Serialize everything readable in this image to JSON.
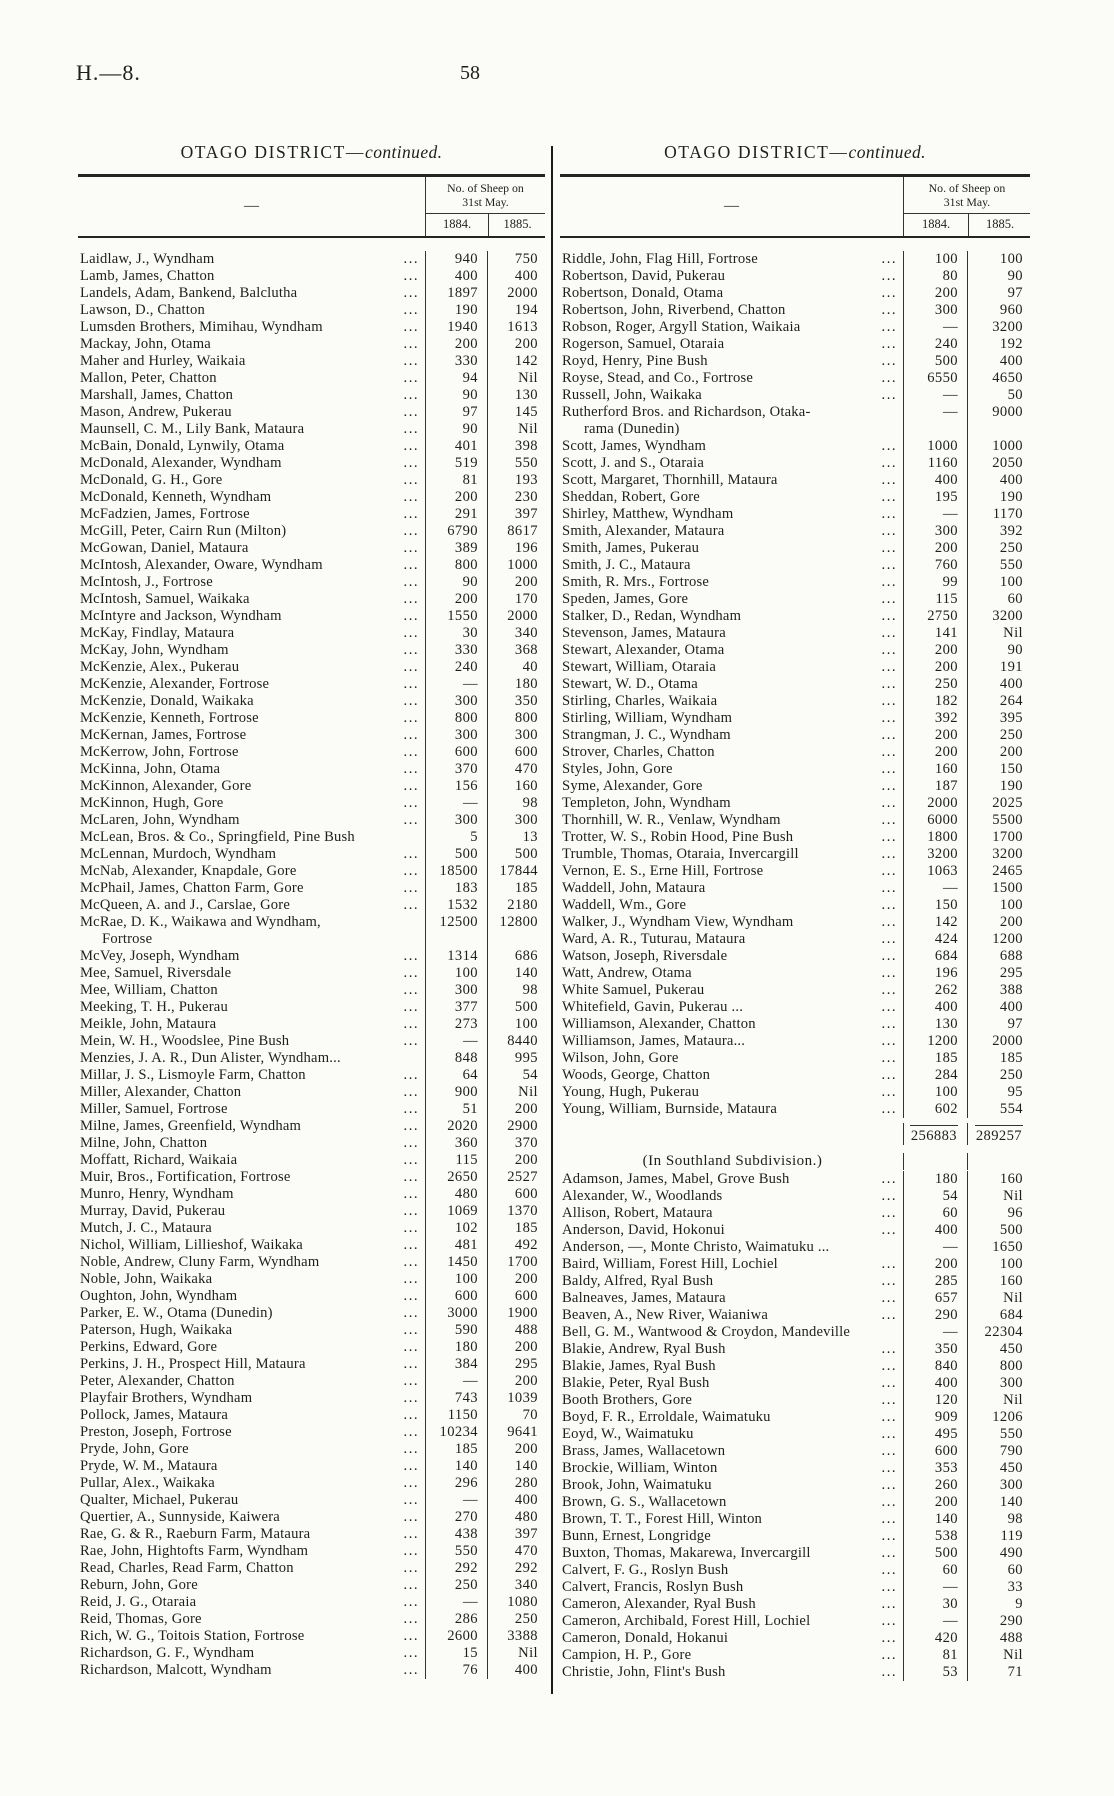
{
  "page": {
    "doc_ref": "H.—8.",
    "page_number": "58"
  },
  "header_labels": {
    "name_dash": "—",
    "sheep_on": "No. of Sheep on",
    "date": "31st May.",
    "y1884": "1884.",
    "y1885": "1885."
  },
  "left_table": {
    "title_caps": "OTAGO DISTRICT—",
    "title_cont": "continued.",
    "rows": [
      [
        "Laidlaw, J., Wyndham",
        1,
        "940",
        "750"
      ],
      [
        "Lamb, James, Chatton",
        1,
        "400",
        "400"
      ],
      [
        "Landels, Adam, Bankend, Balclutha",
        1,
        "1897",
        "2000"
      ],
      [
        "Lawson, D., Chatton",
        1,
        "190",
        "194"
      ],
      [
        "Lumsden Brothers, Mimihau, Wyndham",
        1,
        "1940",
        "1613"
      ],
      [
        "Mackay, John, Otama",
        1,
        "200",
        "200"
      ],
      [
        "Maher and Hurley, Waikaia",
        1,
        "330",
        "142"
      ],
      [
        "Mallon, Peter, Chatton",
        1,
        "94",
        "Nil"
      ],
      [
        "Marshall, James, Chatton",
        1,
        "90",
        "130"
      ],
      [
        "Mason, Andrew, Pukerau",
        1,
        "97",
        "145"
      ],
      [
        "Maunsell, C. M., Lily Bank, Mataura",
        1,
        "90",
        "Nil"
      ],
      [
        "McBain, Donald, Lynwily, Otama",
        1,
        "401",
        "398"
      ],
      [
        "McDonald, Alexander, Wyndham",
        1,
        "519",
        "550"
      ],
      [
        "McDonald, G. H., Gore",
        1,
        "81",
        "193"
      ],
      [
        "McDonald, Kenneth, Wyndham",
        1,
        "200",
        "230"
      ],
      [
        "McFadzien, James, Fortrose",
        1,
        "291",
        "397"
      ],
      [
        "McGill, Peter, Cairn Run (Milton)",
        1,
        "6790",
        "8617"
      ],
      [
        "McGowan, Daniel, Mataura",
        1,
        "389",
        "196"
      ],
      [
        "McIntosh, Alexander, Oware, Wyndham",
        1,
        "800",
        "1000"
      ],
      [
        "McIntosh, J., Fortrose",
        1,
        "90",
        "200"
      ],
      [
        "McIntosh, Samuel, Waikaka",
        1,
        "200",
        "170"
      ],
      [
        "McIntyre and Jackson, Wyndham",
        1,
        "1550",
        "2000"
      ],
      [
        "McKay, Findlay, Mataura",
        1,
        "30",
        "340"
      ],
      [
        "McKay, John, Wyndham",
        1,
        "330",
        "368"
      ],
      [
        "McKenzie, Alex., Pukerau",
        1,
        "240",
        "40"
      ],
      [
        "McKenzie, Alexander, Fortrose",
        1,
        "—",
        "180"
      ],
      [
        "McKenzie, Donald, Waikaka",
        1,
        "300",
        "350"
      ],
      [
        "McKenzie, Kenneth, Fortrose",
        1,
        "800",
        "800"
      ],
      [
        "McKernan, James, Fortrose",
        1,
        "300",
        "300"
      ],
      [
        "McKerrow, John, Fortrose",
        1,
        "600",
        "600"
      ],
      [
        "McKinna, John, Otama",
        1,
        "370",
        "470"
      ],
      [
        "McKinnon, Alexander, Gore",
        1,
        "156",
        "160"
      ],
      [
        "McKinnon, Hugh, Gore",
        1,
        "—",
        "98"
      ],
      [
        "McLaren, John, Wyndham",
        1,
        "300",
        "300"
      ],
      [
        "McLean, Bros. & Co., Springfield, Pine Bush",
        0,
        "5",
        "13"
      ],
      [
        "McLennan, Murdoch, Wyndham",
        1,
        "500",
        "500"
      ],
      [
        "McNab, Alexander, Knapdale, Gore",
        1,
        "18500",
        "17844"
      ],
      [
        "McPhail, James, Chatton Farm, Gore",
        1,
        "183",
        "185"
      ],
      [
        "McQueen, A. and J., Carslae, Gore",
        1,
        "1532",
        "2180"
      ],
      [
        "McRae, D. K., Waikawa and Wyndham,",
        0,
        "12500",
        "12800",
        "Fortrose"
      ],
      [
        "McVey, Joseph, Wyndham",
        1,
        "1314",
        "686"
      ],
      [
        "Mee, Samuel, Riversdale",
        1,
        "100",
        "140"
      ],
      [
        "Mee, William, Chatton",
        1,
        "300",
        "98"
      ],
      [
        "Meeking, T. H., Pukerau",
        1,
        "377",
        "500"
      ],
      [
        "Meikle, John, Mataura",
        1,
        "273",
        "100"
      ],
      [
        "Mein, W. H., Woodslee, Pine Bush",
        1,
        "—",
        "8440"
      ],
      [
        "Menzies, J. A. R., Dun Alister, Wyndham...",
        0,
        "848",
        "995"
      ],
      [
        "Millar, J. S., Lismoyle Farm, Chatton",
        1,
        "64",
        "54"
      ],
      [
        "Miller, Alexander, Chatton",
        1,
        "900",
        "Nil"
      ],
      [
        "Miller, Samuel, Fortrose",
        1,
        "51",
        "200"
      ],
      [
        "Milne, James, Greenfield, Wyndham",
        1,
        "2020",
        "2900"
      ],
      [
        "Milne, John, Chatton",
        1,
        "360",
        "370"
      ],
      [
        "Moffatt, Richard, Waikaia",
        1,
        "115",
        "200"
      ],
      [
        "Muir, Bros., Fortification, Fortrose",
        1,
        "2650",
        "2527"
      ],
      [
        "Munro, Henry, Wyndham",
        1,
        "480",
        "600"
      ],
      [
        "Murray, David, Pukerau",
        1,
        "1069",
        "1370"
      ],
      [
        "Mutch, J. C., Mataura",
        1,
        "102",
        "185"
      ],
      [
        "Nichol, William, Lillieshof, Waikaka",
        1,
        "481",
        "492"
      ],
      [
        "Noble, Andrew, Cluny Farm, Wyndham",
        1,
        "1450",
        "1700"
      ],
      [
        "Noble, John, Waikaka",
        1,
        "100",
        "200"
      ],
      [
        "Oughton, John, Wyndham",
        1,
        "600",
        "600"
      ],
      [
        "Parker, E. W., Otama (Dunedin)",
        1,
        "3000",
        "1900"
      ],
      [
        "Paterson, Hugh, Waikaka",
        1,
        "590",
        "488"
      ],
      [
        "Perkins, Edward, Gore",
        1,
        "180",
        "200"
      ],
      [
        "Perkins, J. H., Prospect Hill, Mataura",
        1,
        "384",
        "295"
      ],
      [
        "Peter, Alexander, Chatton",
        1,
        "—",
        "200"
      ],
      [
        "Playfair Brothers, Wyndham",
        1,
        "743",
        "1039"
      ],
      [
        "Pollock, James, Mataura",
        1,
        "1150",
        "70"
      ],
      [
        "Preston, Joseph, Fortrose",
        1,
        "10234",
        "9641"
      ],
      [
        "Pryde, John, Gore",
        1,
        "185",
        "200"
      ],
      [
        "Pryde, W. M., Mataura",
        1,
        "140",
        "140"
      ],
      [
        "Pullar, Alex., Waikaka",
        1,
        "296",
        "280"
      ],
      [
        "Qualter, Michael, Pukerau",
        1,
        "—",
        "400"
      ],
      [
        "Quertier, A., Sunnyside, Kaiwera",
        1,
        "270",
        "480"
      ],
      [
        "Rae, G. & R., Raeburn Farm, Mataura",
        1,
        "438",
        "397"
      ],
      [
        "Rae, John, Hightofts Farm, Wyndham",
        1,
        "550",
        "470"
      ],
      [
        "Read, Charles, Read Farm, Chatton",
        1,
        "292",
        "292"
      ],
      [
        "Reburn, John, Gore",
        1,
        "250",
        "340"
      ],
      [
        "Reid, J. G., Otaraia",
        1,
        "—",
        "1080"
      ],
      [
        "Reid, Thomas, Gore",
        1,
        "286",
        "250"
      ],
      [
        "Rich, W. G., Toitois Station, Fortrose",
        1,
        "2600",
        "3388"
      ],
      [
        "Richardson, G. F., Wyndham",
        1,
        "15",
        "Nil"
      ],
      [
        "Richardson, Malcott, Wyndham",
        1,
        "76",
        "400"
      ]
    ]
  },
  "right_table": {
    "title_caps": "OTAGO DISTRICT—",
    "title_cont": "continued.",
    "rows": [
      [
        "Riddle, John, Flag Hill, Fortrose",
        1,
        "100",
        "100"
      ],
      [
        "Robertson, David, Pukerau",
        1,
        "80",
        "90"
      ],
      [
        "Robertson, Donald, Otama",
        1,
        "200",
        "97"
      ],
      [
        "Robertson, John, Riverbend, Chatton",
        1,
        "300",
        "960"
      ],
      [
        "Robson, Roger, Argyll Station, Waikaia",
        1,
        "—",
        "3200"
      ],
      [
        "Rogerson, Samuel, Otaraia",
        1,
        "240",
        "192"
      ],
      [
        "Royd, Henry, Pine Bush",
        1,
        "500",
        "400"
      ],
      [
        "Royse, Stead, and Co., Fortrose",
        1,
        "6550",
        "4650"
      ],
      [
        "Russell, John, Waikaka",
        1,
        "—",
        "50"
      ],
      [
        "Rutherford Bros. and Richardson, Otaka-",
        0,
        "—",
        "9000",
        "rama (Dunedin)"
      ],
      [
        "Scott, James, Wyndham",
        1,
        "1000",
        "1000"
      ],
      [
        "Scott, J. and S., Otaraia",
        1,
        "1160",
        "2050"
      ],
      [
        "Scott, Margaret, Thornhill, Mataura",
        1,
        "400",
        "400"
      ],
      [
        "Sheddan, Robert, Gore",
        1,
        "195",
        "190"
      ],
      [
        "Shirley, Matthew, Wyndham",
        1,
        "—",
        "1170"
      ],
      [
        "Smith, Alexander, Mataura",
        1,
        "300",
        "392"
      ],
      [
        "Smith, James, Pukerau",
        1,
        "200",
        "250"
      ],
      [
        "Smith, J. C., Mataura",
        1,
        "760",
        "550"
      ],
      [
        "Smith, R. Mrs., Fortrose",
        1,
        "99",
        "100"
      ],
      [
        "Speden, James, Gore",
        1,
        "115",
        "60"
      ],
      [
        "Stalker, D., Redan, Wyndham",
        1,
        "2750",
        "3200"
      ],
      [
        "Stevenson, James, Mataura",
        1,
        "141",
        "Nil"
      ],
      [
        "Stewart, Alexander, Otama",
        1,
        "200",
        "90"
      ],
      [
        "Stewart, William, Otaraia",
        1,
        "200",
        "191"
      ],
      [
        "Stewart, W. D., Otama",
        1,
        "250",
        "400"
      ],
      [
        "Stirling, Charles, Waikaia",
        1,
        "182",
        "264"
      ],
      [
        "Stirling, William, Wyndham",
        1,
        "392",
        "395"
      ],
      [
        "Strangman, J. C., Wyndham",
        1,
        "200",
        "250"
      ],
      [
        "Strover, Charles, Chatton",
        1,
        "200",
        "200"
      ],
      [
        "Styles, John, Gore",
        1,
        "160",
        "150"
      ],
      [
        "Syme, Alexander, Gore",
        1,
        "187",
        "190"
      ],
      [
        "Templeton, John, Wyndham",
        1,
        "2000",
        "2025"
      ],
      [
        "Thornhill, W. R., Venlaw, Wyndham",
        1,
        "6000",
        "5500"
      ],
      [
        "Trotter, W. S., Robin Hood, Pine Bush",
        1,
        "1800",
        "1700"
      ],
      [
        "Trumble, Thomas, Otaraia, Invercargill",
        1,
        "3200",
        "3200"
      ],
      [
        "Vernon, E. S., Erne Hill, Fortrose",
        1,
        "1063",
        "2465"
      ],
      [
        "Waddell, John, Mataura",
        1,
        "—",
        "1500"
      ],
      [
        "Waddell, Wm., Gore",
        1,
        "150",
        "100"
      ],
      [
        "Walker, J., Wyndham View, Wyndham",
        1,
        "142",
        "200"
      ],
      [
        "Ward, A. R., Tuturau, Mataura",
        1,
        "424",
        "1200"
      ],
      [
        "Watson, Joseph, Riversdale",
        1,
        "684",
        "688"
      ],
      [
        "Watt, Andrew, Otama",
        1,
        "196",
        "295"
      ],
      [
        "White Samuel, Pukerau",
        1,
        "262",
        "388"
      ],
      [
        "Whitefield, Gavin, Pukerau ...",
        1,
        "400",
        "400"
      ],
      [
        "Williamson, Alexander, Chatton",
        1,
        "130",
        "97"
      ],
      [
        "Williamson, James, Mataura...",
        1,
        "1200",
        "2000"
      ],
      [
        "Wilson, John, Gore",
        1,
        "185",
        "185"
      ],
      [
        "Woods, George, Chatton",
        1,
        "284",
        "250"
      ],
      [
        "Young, Hugh, Pukerau",
        1,
        "100",
        "95"
      ],
      [
        "Young, William, Burnside, Mataura",
        1,
        "602",
        "554"
      ],
      {
        "total": [
          "256883",
          "289257"
        ]
      },
      {
        "sub": "(In Southland Subdivision.)"
      },
      [
        "Adamson, James, Mabel, Grove Bush",
        1,
        "180",
        "160"
      ],
      [
        "Alexander, W., Woodlands",
        1,
        "54",
        "Nil"
      ],
      [
        "Allison, Robert, Mataura",
        1,
        "60",
        "96"
      ],
      [
        "Anderson, David, Hokonui",
        1,
        "400",
        "500"
      ],
      [
        "Anderson, —, Monte Christo, Waimatuku ...",
        0,
        "—",
        "1650"
      ],
      [
        "Baird, William, Forest Hill, Lochiel",
        1,
        "200",
        "100"
      ],
      [
        "Baldy, Alfred, Ryal Bush",
        1,
        "285",
        "160"
      ],
      [
        "Balneaves, James, Mataura",
        1,
        "657",
        "Nil"
      ],
      [
        "Beaven, A., New River, Waianiwa",
        1,
        "290",
        "684"
      ],
      [
        "Bell, G. M., Wantwood & Croydon, Mandeville",
        0,
        "—",
        "22304"
      ],
      [
        "Blakie, Andrew, Ryal Bush",
        1,
        "350",
        "450"
      ],
      [
        "Blakie, James, Ryal Bush",
        1,
        "840",
        "800"
      ],
      [
        "Blakie, Peter, Ryal Bush",
        1,
        "400",
        "300"
      ],
      [
        "Booth Brothers, Gore",
        1,
        "120",
        "Nil"
      ],
      [
        "Boyd, F. R., Erroldale, Waimatuku",
        1,
        "909",
        "1206"
      ],
      [
        "Eoyd, W., Waimatuku",
        1,
        "495",
        "550"
      ],
      [
        "Brass, James, Wallacetown",
        1,
        "600",
        "790"
      ],
      [
        "Brockie, William, Winton",
        1,
        "353",
        "450"
      ],
      [
        "Brook, John, Waimatuku",
        1,
        "260",
        "300"
      ],
      [
        "Brown, G. S., Wallacetown",
        1,
        "200",
        "140"
      ],
      [
        "Brown, T. T., Forest Hill, Winton",
        1,
        "140",
        "98"
      ],
      [
        "Bunn, Ernest, Longridge",
        1,
        "538",
        "119"
      ],
      [
        "Buxton, Thomas, Makarewa, Invercargill",
        1,
        "500",
        "490"
      ],
      [
        "Calvert, F. G., Roslyn Bush",
        1,
        "60",
        "60"
      ],
      [
        "Calvert, Francis, Roslyn Bush",
        1,
        "—",
        "33"
      ],
      [
        "Cameron, Alexander, Ryal Bush",
        1,
        "30",
        "9"
      ],
      [
        "Cameron, Archibald, Forest Hill, Lochiel",
        1,
        "—",
        "290"
      ],
      [
        "Cameron, Donald, Hokanui",
        1,
        "420",
        "488"
      ],
      [
        "Campion, H. P., Gore",
        1,
        "81",
        "Nil"
      ],
      [
        "Christie, John, Flint's Bush",
        1,
        "53",
        "71"
      ]
    ]
  }
}
